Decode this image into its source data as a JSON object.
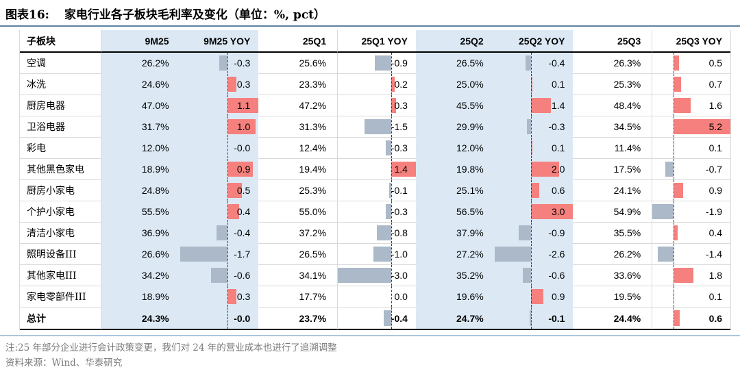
{
  "title_label": "图表16:",
  "title_text": "家电行业各子板块毛利率及变化（单位：%, pct）",
  "notes": [
    "注:25 年部分企业进行会计政策变更，我们对 24 年的营业成本也进行了追溯调整",
    "资料来源：Wind、华泰研究"
  ],
  "colors": {
    "highlight_band": "#dce9f5",
    "positive_bar": "#f5807d",
    "negative_bar": "#abb9c8",
    "rule_top": "#5d82a3",
    "rule_bottom": "#aac7e0"
  },
  "chart_data": {
    "type": "table",
    "title": "图表16: 家电行业各子板块毛利率及变化（单位：%, pct）",
    "columns": [
      "子板块",
      "9M25",
      "9M25 YOY",
      "25Q1",
      "25Q1 YOY",
      "25Q2",
      "25Q2 YOY",
      "25Q3",
      "25Q3 YOY"
    ],
    "highlighted_columns": [
      "9M25",
      "9M25 YOY",
      "25Q2",
      "25Q2 YOY"
    ],
    "yoy_bar_style": "excel-data-bar, per-column scaled, dashed zero axis, positive red right, negative gray left",
    "rows": [
      {
        "name": "空调",
        "cells": [
          "26.2%",
          "-0.3",
          "25.6%",
          "-0.9",
          "26.5%",
          "-0.4",
          "26.3%",
          "0.5"
        ],
        "bold": false
      },
      {
        "name": "冰洗",
        "cells": [
          "24.6%",
          "0.3",
          "23.3%",
          "0.2",
          "25.0%",
          "0.1",
          "25.3%",
          "0.7"
        ],
        "bold": false
      },
      {
        "name": "厨房电器",
        "cells": [
          "47.0%",
          "1.1",
          "47.2%",
          "0.3",
          "45.5%",
          "1.4",
          "48.4%",
          "1.6"
        ],
        "bold": false
      },
      {
        "name": "卫浴电器",
        "cells": [
          "31.7%",
          "1.0",
          "31.3%",
          "-1.5",
          "29.9%",
          "-0.3",
          "34.5%",
          "5.2"
        ],
        "bold": false
      },
      {
        "name": "彩电",
        "cells": [
          "12.0%",
          "-0.0",
          "12.4%",
          "-0.3",
          "12.0%",
          "0.1",
          "11.4%",
          "0.1"
        ],
        "bold": false
      },
      {
        "name": "其他黑色家电",
        "cells": [
          "18.9%",
          "0.9",
          "19.4%",
          "1.4",
          "19.8%",
          "2.0",
          "17.5%",
          "-0.7"
        ],
        "bold": false
      },
      {
        "name": "厨房小家电",
        "cells": [
          "24.8%",
          "0.5",
          "25.3%",
          "-0.1",
          "25.1%",
          "0.6",
          "24.1%",
          "0.9"
        ],
        "bold": false
      },
      {
        "name": "个护小家电",
        "cells": [
          "55.5%",
          "0.4",
          "55.0%",
          "-0.3",
          "56.5%",
          "3.0",
          "54.9%",
          "-1.9"
        ],
        "bold": false
      },
      {
        "name": "清洁小家电",
        "cells": [
          "36.9%",
          "-0.4",
          "37.2%",
          "-0.8",
          "37.9%",
          "-0.9",
          "35.5%",
          "0.4"
        ],
        "bold": false
      },
      {
        "name": "照明设备III",
        "cells": [
          "26.6%",
          "-1.7",
          "26.5%",
          "-1.0",
          "27.2%",
          "-2.6",
          "26.2%",
          "-1.4"
        ],
        "bold": false
      },
      {
        "name": "其他家电III",
        "cells": [
          "34.2%",
          "-0.6",
          "34.1%",
          "-3.0",
          "35.2%",
          "-0.6",
          "33.6%",
          "1.8"
        ],
        "bold": false
      },
      {
        "name": "家电零部件III",
        "cells": [
          "18.9%",
          "0.3",
          "17.7%",
          "0.0",
          "19.6%",
          "0.9",
          "19.5%",
          "0.1"
        ],
        "bold": false
      },
      {
        "name": "总计",
        "cells": [
          "24.3%",
          "-0.0",
          "23.7%",
          "-0.4",
          "24.7%",
          "-0.1",
          "24.4%",
          "0.6"
        ],
        "bold": true
      }
    ]
  }
}
